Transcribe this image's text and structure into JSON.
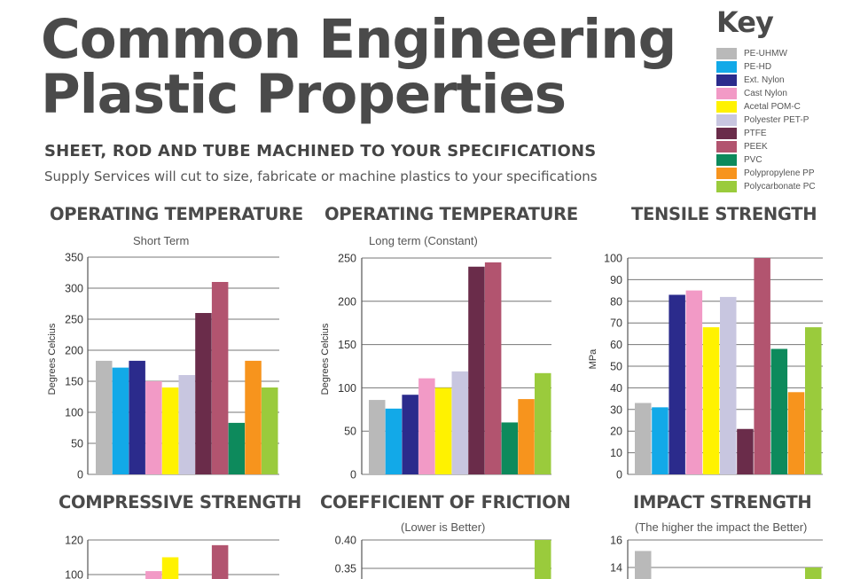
{
  "title_line1": "Common Engineering",
  "title_line2": "Plastic Properties",
  "subtitle": "SHEET, ROD AND TUBE MACHINED TO YOUR SPECIFICATIONS",
  "tagline": "Supply Services will cut to size, fabricate or machine plastics to your specifications",
  "key": {
    "title": "Key",
    "items": [
      {
        "label": "PE-UHMW",
        "color": "#b9b9b9"
      },
      {
        "label": "PE-HD",
        "color": "#12a9e8"
      },
      {
        "label": "Ext. Nylon",
        "color": "#2b2b8c"
      },
      {
        "label": "Cast Nylon",
        "color": "#f29ac6"
      },
      {
        "label": "Acetal POM-C",
        "color": "#fff200"
      },
      {
        "label": "Polyester PET-P",
        "color": "#c8c6e0"
      },
      {
        "label": "PTFE",
        "color": "#6a2c4a"
      },
      {
        "label": "PEEK",
        "color": "#b2546f"
      },
      {
        "label": "PVC",
        "color": "#0d8a5c"
      },
      {
        "label": "Polypropylene PP",
        "color": "#f7941d"
      },
      {
        "label": "Polycarbonate PC",
        "color": "#9acb3c"
      }
    ]
  },
  "chart_data": [
    {
      "type": "bar",
      "title": "OPERATING TEMPERATURE",
      "subtitle": "Short Term",
      "ylabel": "Degrees Celcius",
      "ylim": [
        0,
        350
      ],
      "yticks": [
        "0",
        "50",
        "100",
        "150",
        "200",
        "250",
        "300",
        "350"
      ],
      "tick_values": [
        0,
        50,
        100,
        150,
        200,
        250,
        300,
        350
      ],
      "categories": [
        "PE-UHMW",
        "PE-HD",
        "Ext. Nylon",
        "Cast Nylon",
        "Acetal POM-C",
        "Polyester PET-P",
        "PTFE",
        "PEEK",
        "PVC",
        "Polypropylene PP",
        "Polycarbonate PC"
      ],
      "values": [
        183,
        172,
        183,
        150,
        140,
        160,
        260,
        310,
        83,
        183,
        140
      ],
      "grid": true
    },
    {
      "type": "bar",
      "title": "OPERATING TEMPERATURE",
      "subtitle": "Long term (Constant)",
      "ylabel": "Degrees Celcius",
      "ylim": [
        0,
        250
      ],
      "yticks": [
        "0",
        "50",
        "100",
        "150",
        "200",
        "250"
      ],
      "tick_values": [
        0,
        50,
        100,
        150,
        200,
        250
      ],
      "categories": [
        "PE-UHMW",
        "PE-HD",
        "Ext. Nylon",
        "Cast Nylon",
        "Acetal POM-C",
        "Polyester PET-P",
        "PTFE",
        "PEEK",
        "PVC",
        "Polypropylene PP",
        "Polycarbonate PC"
      ],
      "values": [
        86,
        76,
        92,
        111,
        100,
        119,
        240,
        245,
        60,
        87,
        117
      ],
      "grid": true
    },
    {
      "type": "bar",
      "title": "TENSILE STRENGTH",
      "subtitle": "",
      "ylabel": "MPa",
      "ylim": [
        0,
        100
      ],
      "yticks": [
        "0",
        "10",
        "20",
        "30",
        "40",
        "50",
        "60",
        "70",
        "80",
        "90",
        "100"
      ],
      "tick_values": [
        0,
        10,
        20,
        30,
        40,
        50,
        60,
        70,
        80,
        90,
        100
      ],
      "categories": [
        "PE-UHMW",
        "PE-HD",
        "Ext. Nylon",
        "Cast Nylon",
        "Acetal POM-C",
        "Polyester PET-P",
        "PTFE",
        "PEEK",
        "PVC",
        "Polypropylene PP",
        "Polycarbonate PC"
      ],
      "values": [
        33,
        31,
        83,
        85,
        68,
        82,
        21,
        100,
        58,
        38,
        68
      ],
      "grid": true
    },
    {
      "type": "bar",
      "title": "COMPRESSIVE STRENGTH",
      "subtitle": "",
      "ylabel": "",
      "ylim": [
        0,
        120
      ],
      "yticks": [
        "100",
        "120"
      ],
      "tick_values": [
        100,
        120
      ],
      "categories": [
        "PE-UHMW",
        "PE-HD",
        "Ext. Nylon",
        "Cast Nylon",
        "Acetal POM-C",
        "Polyester PET-P",
        "PTFE",
        "PEEK",
        "PVC",
        "Polypropylene PP",
        "Polycarbonate PC"
      ],
      "values": [
        null,
        null,
        null,
        102,
        110,
        null,
        null,
        117,
        null,
        null,
        null
      ],
      "grid": true
    },
    {
      "type": "bar",
      "title": "COEFFICIENT OF FRICTION",
      "subtitle": "(Lower is Better)",
      "ylabel": "",
      "ylim": [
        0,
        0.4
      ],
      "yticks": [
        "0.35",
        "0.40"
      ],
      "tick_values": [
        0.35,
        0.4
      ],
      "categories": [
        "PE-UHMW",
        "PE-HD",
        "Ext. Nylon",
        "Cast Nylon",
        "Acetal POM-C",
        "Polyester PET-P",
        "PTFE",
        "PEEK",
        "PVC",
        "Polypropylene PP",
        "Polycarbonate PC"
      ],
      "values": [
        null,
        null,
        null,
        null,
        null,
        null,
        null,
        null,
        null,
        null,
        0.4
      ],
      "grid": true
    },
    {
      "type": "bar",
      "title": "IMPACT STRENGTH",
      "subtitle": "(The higher the impact the Better)",
      "ylabel": "",
      "ylim": [
        0,
        16
      ],
      "yticks": [
        "14",
        "16"
      ],
      "tick_values": [
        14,
        16
      ],
      "categories": [
        "PE-UHMW",
        "PE-HD",
        "Ext. Nylon",
        "Cast Nylon",
        "Acetal POM-C",
        "Polyester PET-P",
        "PTFE",
        "PEEK",
        "PVC",
        "Polypropylene PP",
        "Polycarbonate PC"
      ],
      "values": [
        15.2,
        null,
        null,
        null,
        null,
        null,
        null,
        null,
        null,
        null,
        14
      ],
      "grid": true
    }
  ]
}
